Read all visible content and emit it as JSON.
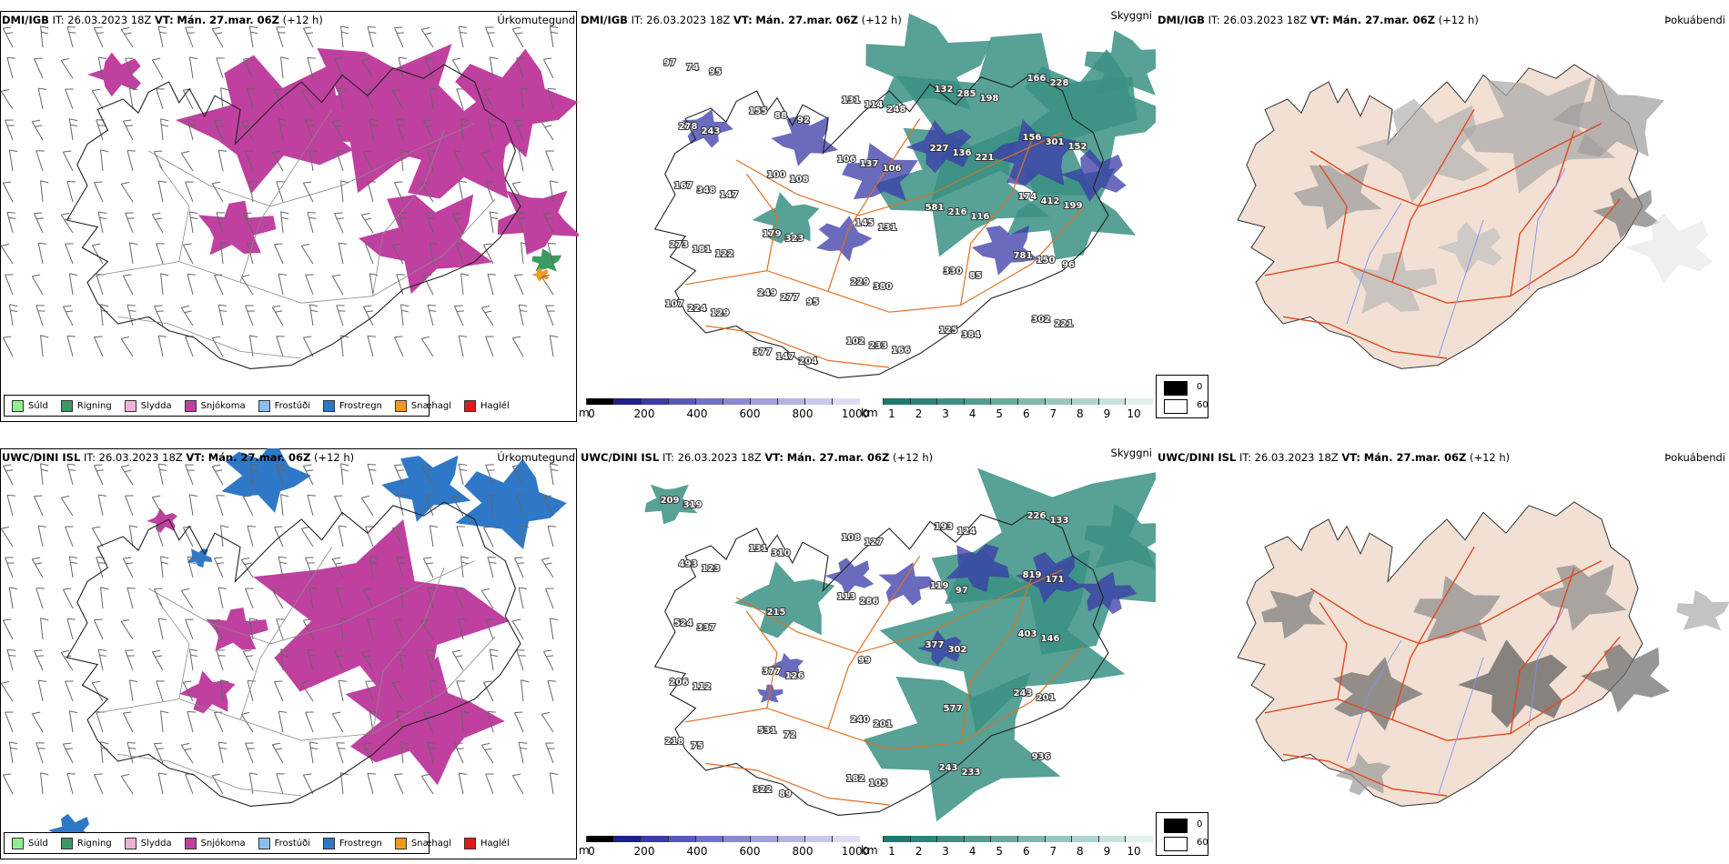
{
  "rows": [
    {
      "model": "DMI/IGB",
      "it_label": "IT:",
      "it_time": "26.03.2023 18Z",
      "vt_label": "VT:",
      "vt_time": "Mán. 27.mar. 06Z",
      "lead": "(+12 h)",
      "panel_titles": [
        "Úrkomutegund",
        "Skyggni",
        "Þokuábendi"
      ],
      "visibility_labels": [
        "97",
        "155",
        "106",
        "581",
        "781",
        "107",
        "377",
        "131",
        "227",
        "174",
        "273",
        "249",
        "102",
        "132",
        "156",
        "167",
        "179",
        "229",
        "125",
        "166",
        "278",
        "100",
        "145",
        "330",
        "302",
        "74",
        "88",
        "137",
        "216",
        "150",
        "224",
        "147",
        "114",
        "136",
        "412",
        "181",
        "277",
        "233",
        "285",
        "301",
        "348",
        "323",
        "380",
        "384",
        "228",
        "243",
        "108",
        "131",
        "85",
        "221",
        "95",
        "92",
        "106",
        "116",
        "96",
        "129",
        "204",
        "248",
        "221",
        "199",
        "122",
        "95",
        "166",
        "198",
        "152",
        "147"
      ]
    },
    {
      "model": "UWC/DINI ISL",
      "it_label": "IT:",
      "it_time": "26.03.2023 18Z",
      "vt_label": "VT:",
      "vt_time": "Mán. 27.mar. 06Z",
      "lead": "(+12 h)",
      "panel_titles": [
        "Úrkomutegund",
        "Skyggni",
        "Þokuábendi"
      ],
      "visibility_labels": [
        "209",
        "131",
        "113",
        "377",
        "243",
        "218",
        "322",
        "108",
        "119",
        "403",
        "206",
        "531",
        "182",
        "193",
        "819",
        "524",
        "377",
        "240",
        "243",
        "226",
        "493",
        "215",
        "99",
        "577",
        "936",
        "319",
        "310",
        "286",
        "302",
        "201",
        "75",
        "89",
        "127",
        "97",
        "146",
        "112",
        "72",
        "105",
        "124",
        "171",
        "337",
        "126",
        "201",
        "233",
        "133",
        "123"
      ]
    }
  ],
  "precip_legend": [
    {
      "label": "Súld",
      "color": "#90ee90"
    },
    {
      "label": "Rigning",
      "color": "#3a9a60"
    },
    {
      "label": "Slydda",
      "color": "#f0b0d8"
    },
    {
      "label": "Snjókoma",
      "color": "#c040a0"
    },
    {
      "label": "Frostúði",
      "color": "#8cc0f0"
    },
    {
      "label": "Frostregn",
      "color": "#2f78c8"
    },
    {
      "label": "Snæhagl",
      "color": "#f09a20"
    },
    {
      "label": "Haglél",
      "color": "#e01818"
    }
  ],
  "vis_colorbar_m": {
    "unit": "m",
    "ticks": [
      "0",
      "200",
      "400",
      "600",
      "800",
      "1000"
    ],
    "colors": [
      "#000000",
      "#1e1e8c",
      "#3a3aa8",
      "#5858bc",
      "#7272c8",
      "#8a8ad0",
      "#a0a0dc",
      "#b4b4e4",
      "#c8c8ec",
      "#dcdcf4"
    ]
  },
  "vis_colorbar_km": {
    "unit": "km",
    "ticks": [
      "1",
      "2",
      "3",
      "4",
      "5",
      "6",
      "7",
      "8",
      "9",
      "10"
    ],
    "colors": [
      "#1e7a6e",
      "#2c8478",
      "#3e9084",
      "#529c90",
      "#68aa9e",
      "#80b8ae",
      "#98c6be",
      "#b0d4ce",
      "#c8e2de",
      "#e0f0ec"
    ]
  },
  "fog_legend": {
    "items": [
      {
        "label": "0",
        "color": "#000000"
      },
      {
        "label": "60",
        "color": "#ffffff"
      }
    ]
  },
  "colors": {
    "snow": "#c040a0",
    "freezing_rain": "#2f78c8",
    "vis_teal": "#3a9084",
    "vis_blue": "#3a3aa8",
    "roads": "#e07020",
    "fog_land": "#f2e0d4",
    "fog_roads": "#e04820",
    "fog_rivers": "#8090f0"
  }
}
